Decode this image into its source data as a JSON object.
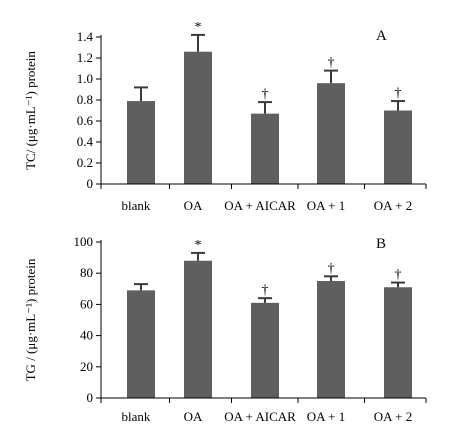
{
  "chart_data": [
    {
      "type": "bar",
      "panel_label": "A",
      "ylabel": "TC/ (μg·mL⁻¹) protein",
      "categories": [
        "blank",
        "OA",
        "OA + AICAR",
        "OA + 1",
        "OA + 2"
      ],
      "values": [
        0.79,
        1.26,
        0.67,
        0.96,
        0.7
      ],
      "errors": [
        0.13,
        0.16,
        0.11,
        0.12,
        0.09
      ],
      "markers": [
        "",
        "*",
        "†",
        "†",
        "†"
      ],
      "ylim": [
        0,
        1.4
      ],
      "yticks": [
        "0",
        "0.2",
        "0.4",
        "0.6",
        "0.8",
        "1.0",
        "1.2",
        "1.4"
      ],
      "bar_color": "#5f5f5f",
      "grid": false
    },
    {
      "type": "bar",
      "panel_label": "B",
      "ylabel": "TG / (μg·mL⁻¹) protein",
      "categories": [
        "blank",
        "OA",
        "OA + AICAR",
        "OA + 1",
        "OA + 2"
      ],
      "values": [
        69,
        88,
        61,
        75,
        71
      ],
      "errors": [
        4,
        5,
        3,
        3,
        3
      ],
      "markers": [
        "",
        "*",
        "†",
        "†",
        "†"
      ],
      "ylim": [
        0,
        100
      ],
      "yticks": [
        "0",
        "20",
        "40",
        "60",
        "80",
        "100"
      ],
      "bar_color": "#5f5f5f",
      "grid": false
    }
  ]
}
